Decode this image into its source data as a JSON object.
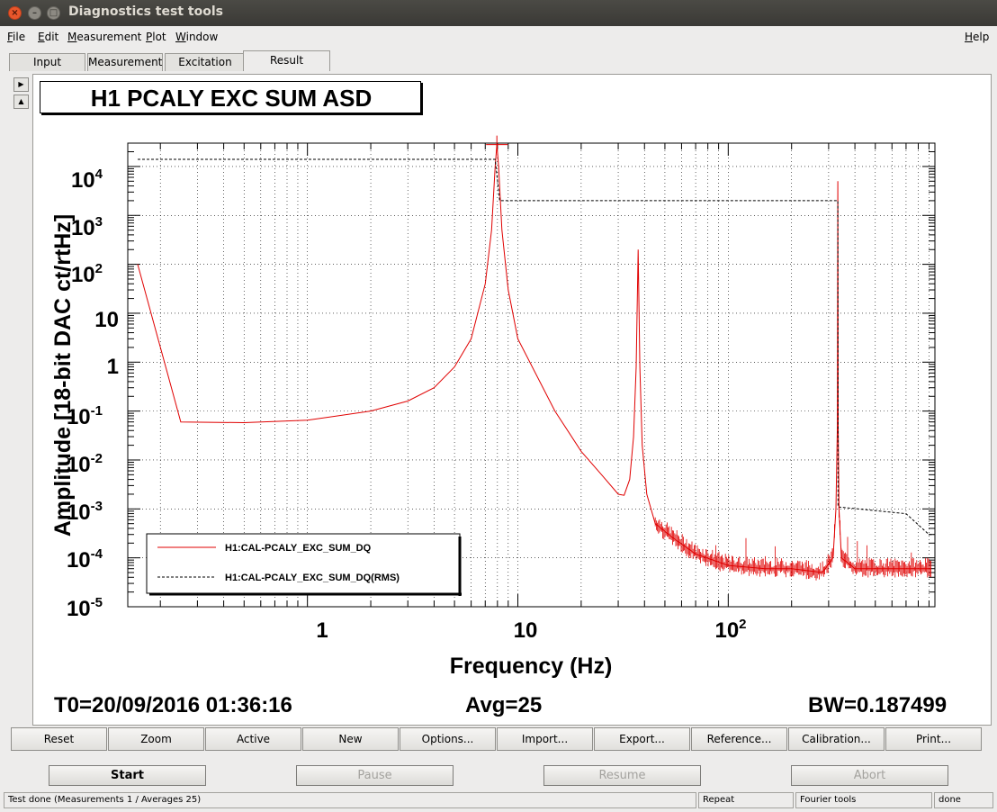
{
  "window": {
    "title": "Diagnostics test tools"
  },
  "menu": {
    "file": "File",
    "edit": "Edit",
    "measurement": "Measurement",
    "plot": "Plot",
    "window": "Window",
    "help": "Help"
  },
  "tabs": [
    "Input",
    "Measurement",
    "Excitation",
    "Result"
  ],
  "plot": {
    "title": "H1 PCALY EXC SUM ASD",
    "ylabel": "Amplitude [18-bit DAC ct/rtHz]",
    "xlabel": "Frequency (Hz)",
    "yticks": [
      {
        "base": "10",
        "exp": "4"
      },
      {
        "base": "10",
        "exp": "3"
      },
      {
        "base": "10",
        "exp": "2"
      },
      {
        "base": "10",
        "exp": ""
      },
      {
        "base": "1",
        "exp": ""
      },
      {
        "base": "10",
        "exp": "-1"
      },
      {
        "base": "10",
        "exp": "-2"
      },
      {
        "base": "10",
        "exp": "-3"
      },
      {
        "base": "10",
        "exp": "-4"
      },
      {
        "base": "10",
        "exp": "-5"
      }
    ],
    "xticks": [
      {
        "base": "1",
        "exp": ""
      },
      {
        "base": "10",
        "exp": ""
      },
      {
        "base": "10",
        "exp": "2"
      }
    ],
    "legend": [
      "H1:CAL-PCALY_EXC_SUM_DQ",
      "H1:CAL-PCALY_EXC_SUM_DQ(RMS)"
    ]
  },
  "chart_data": {
    "type": "line",
    "title": "H1 PCALY EXC SUM ASD",
    "xlabel": "Frequency (Hz)",
    "ylabel": "Amplitude [18-bit DAC ct/rtHz]",
    "xscale": "log",
    "yscale": "log",
    "xlim": [
      0.14,
      960
    ],
    "ylim": [
      1e-05,
      30000
    ],
    "grid": true,
    "legend_position": "bottom-left",
    "series": [
      {
        "name": "H1:CAL-PCALY_EXC_SUM_DQ",
        "color": "#e00000",
        "style": "solid",
        "points": [
          [
            0.156,
            100
          ],
          [
            0.25,
            0.06
          ],
          [
            0.5,
            0.058
          ],
          [
            1,
            0.065
          ],
          [
            2,
            0.1
          ],
          [
            3,
            0.16
          ],
          [
            4,
            0.3
          ],
          [
            5,
            0.8
          ],
          [
            6,
            3
          ],
          [
            7,
            40
          ],
          [
            7.5,
            500
          ],
          [
            7.8,
            10000
          ],
          [
            7.95,
            28000
          ],
          [
            8.1,
            10000
          ],
          [
            8.4,
            500
          ],
          [
            9,
            30
          ],
          [
            10,
            3
          ],
          [
            15,
            0.1
          ],
          [
            20,
            0.015
          ],
          [
            25,
            0.005
          ],
          [
            30,
            0.002
          ],
          [
            32,
            0.0019
          ],
          [
            34,
            0.004
          ],
          [
            35.5,
            0.03
          ],
          [
            36.5,
            0.8
          ],
          [
            37.3,
            200
          ],
          [
            38,
            0.8
          ],
          [
            39,
            0.02
          ],
          [
            41,
            0.002
          ],
          [
            45,
            0.0005
          ],
          [
            55,
            0.00025
          ],
          [
            70,
            0.00012
          ],
          [
            100,
            7e-05
          ],
          [
            150,
            6e-05
          ],
          [
            200,
            6e-05
          ],
          [
            280,
            5e-05
          ],
          [
            315,
            0.0001
          ],
          [
            325,
            0.001
          ],
          [
            330,
            0.05
          ],
          [
            331.9,
            5000
          ],
          [
            333,
            0.05
          ],
          [
            336,
            0.001
          ],
          [
            345,
            0.0001
          ],
          [
            400,
            6e-05
          ],
          [
            500,
            6e-05
          ],
          [
            700,
            6e-05
          ],
          [
            920,
            6e-05
          ]
        ]
      },
      {
        "name": "H1:CAL-PCALY_EXC_SUM_DQ(RMS)",
        "color": "#000000",
        "style": "dashed",
        "points": [
          [
            0.156,
            14000
          ],
          [
            7.8,
            14000
          ],
          [
            8.2,
            2000
          ],
          [
            331.9,
            2000
          ],
          [
            332.5,
            0.0011
          ],
          [
            700,
            0.0008
          ],
          [
            900,
            0.0003
          ],
          [
            950,
            0.0003
          ]
        ]
      }
    ]
  },
  "info": {
    "t0": "T0=20/09/2016 01:36:16",
    "avg": "Avg=25",
    "bw": "BW=0.187499"
  },
  "toolbar": [
    "Reset",
    "Zoom",
    "Active",
    "New",
    "Options...",
    "Import...",
    "Export...",
    "Reference...",
    "Calibration...",
    "Print..."
  ],
  "controls": {
    "start": "Start",
    "pause": "Pause",
    "resume": "Resume",
    "abort": "Abort"
  },
  "status": {
    "message": "Test done (Measurements 1 / Averages 25)",
    "repeat": "Repeat",
    "tool": "Fourier tools",
    "state": "done"
  }
}
